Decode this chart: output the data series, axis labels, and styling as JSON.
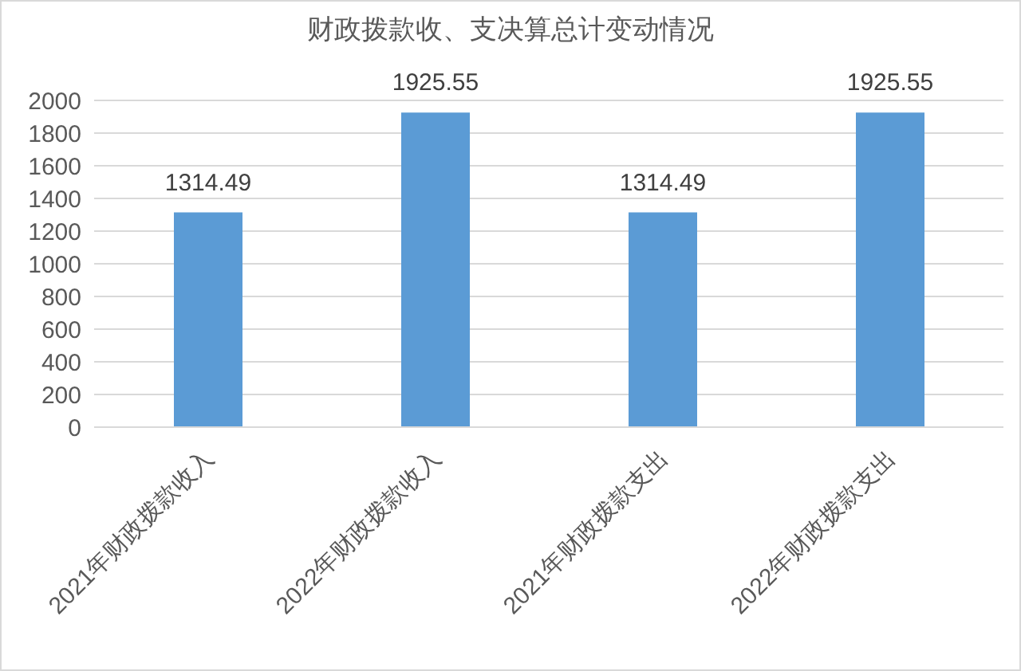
{
  "chart_data": {
    "type": "bar",
    "title": "财政拨款收、支决算总计变动情况",
    "categories": [
      "2021年财政拨款收入",
      "2022年财政拨款收入",
      "2021年财政拨款支出",
      "2022年财政拨款支出"
    ],
    "values": [
      1314.49,
      1925.55,
      1314.49,
      1925.55
    ],
    "color": "#5b9bd5",
    "ylim": [
      0,
      2000
    ],
    "yticks": [
      0,
      200,
      400,
      600,
      800,
      1000,
      1200,
      1400,
      1600,
      1800,
      2000
    ],
    "grid": "y",
    "data_labels": true,
    "legend": false
  }
}
